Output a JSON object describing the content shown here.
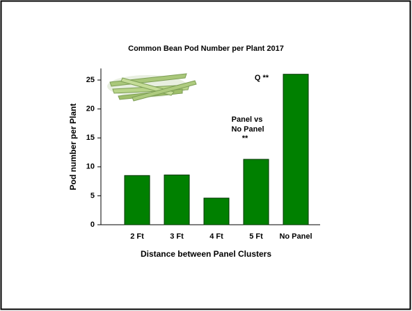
{
  "chart_data": {
    "type": "bar",
    "title": "Common Bean Pod Number per Plant 2017",
    "x_label": "Distance between Panel Clusters",
    "y_label": "Pod number per Plant",
    "categories": [
      "2 Ft",
      "3 Ft",
      "4 Ft",
      "5 Ft",
      "No Panel"
    ],
    "values": [
      8.5,
      8.6,
      4.6,
      11.3,
      26.0
    ],
    "color": "#008000",
    "ylim": [
      0,
      27
    ],
    "yticks": [
      0,
      5,
      10,
      15,
      20,
      25
    ],
    "grid": false,
    "annotations": [
      "Q **",
      "Panel vs",
      "No Panel",
      "**"
    ]
  }
}
